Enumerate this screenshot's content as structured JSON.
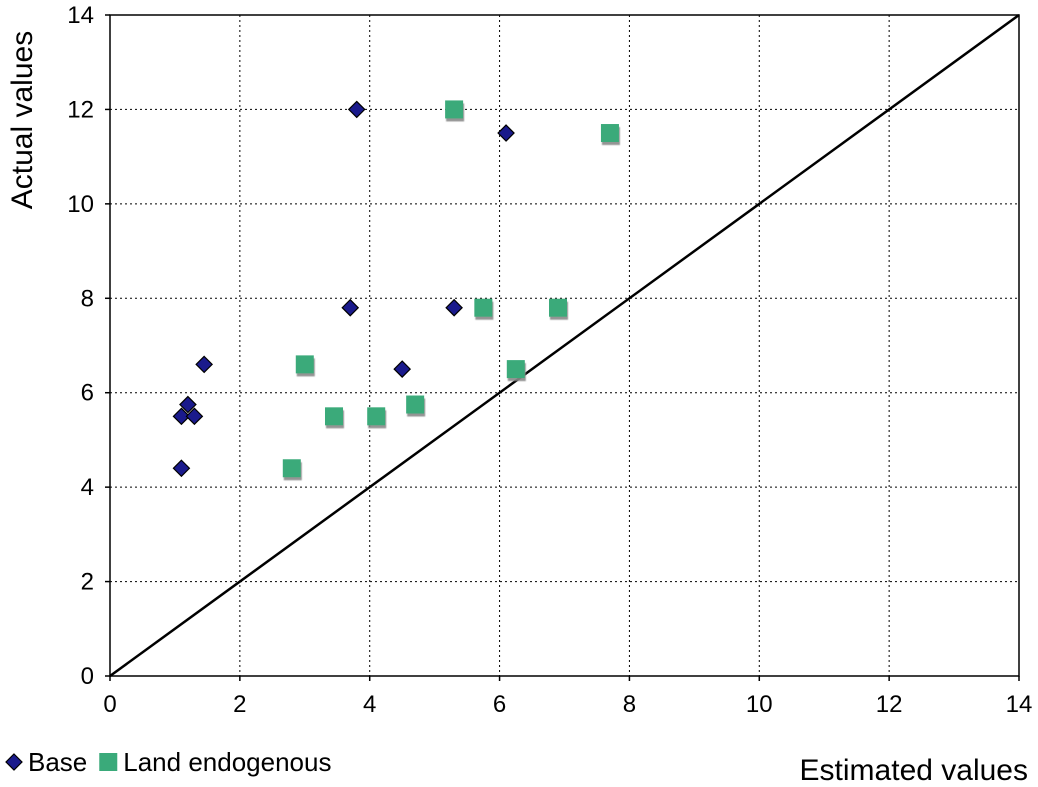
{
  "chart_data": {
    "type": "scatter",
    "title": "",
    "xlabel": "Estimated values",
    "ylabel": "Actual values",
    "xlim": [
      0,
      14
    ],
    "ylim": [
      0,
      14
    ],
    "x_ticks": [
      "0",
      "2",
      "4",
      "6",
      "8",
      "10",
      "12",
      "14"
    ],
    "y_ticks": [
      "0",
      "2",
      "4",
      "6",
      "8",
      "10",
      "12",
      "14"
    ],
    "grid": true,
    "legend_position": "bottom-left",
    "reference_line": {
      "from": [
        0,
        0
      ],
      "to": [
        14,
        14
      ]
    },
    "series": [
      {
        "name": "Base",
        "marker": "diamond",
        "color": "#1a1a8c",
        "points": [
          [
            1.1,
            4.4
          ],
          [
            1.1,
            5.5
          ],
          [
            1.2,
            5.75
          ],
          [
            1.3,
            5.5
          ],
          [
            1.45,
            6.6
          ],
          [
            3.7,
            7.8
          ],
          [
            3.8,
            12.0
          ],
          [
            4.5,
            6.5
          ],
          [
            5.3,
            7.8
          ],
          [
            6.1,
            11.5
          ]
        ]
      },
      {
        "name": "Land endogenous",
        "marker": "square",
        "color": "#3aaa7a",
        "points": [
          [
            2.8,
            4.4
          ],
          [
            3.0,
            6.6
          ],
          [
            3.45,
            5.5
          ],
          [
            4.1,
            5.5
          ],
          [
            4.7,
            5.75
          ],
          [
            5.3,
            12.0
          ],
          [
            5.75,
            7.8
          ],
          [
            6.25,
            6.5
          ],
          [
            6.9,
            7.8
          ],
          [
            7.7,
            11.5
          ]
        ]
      }
    ]
  }
}
